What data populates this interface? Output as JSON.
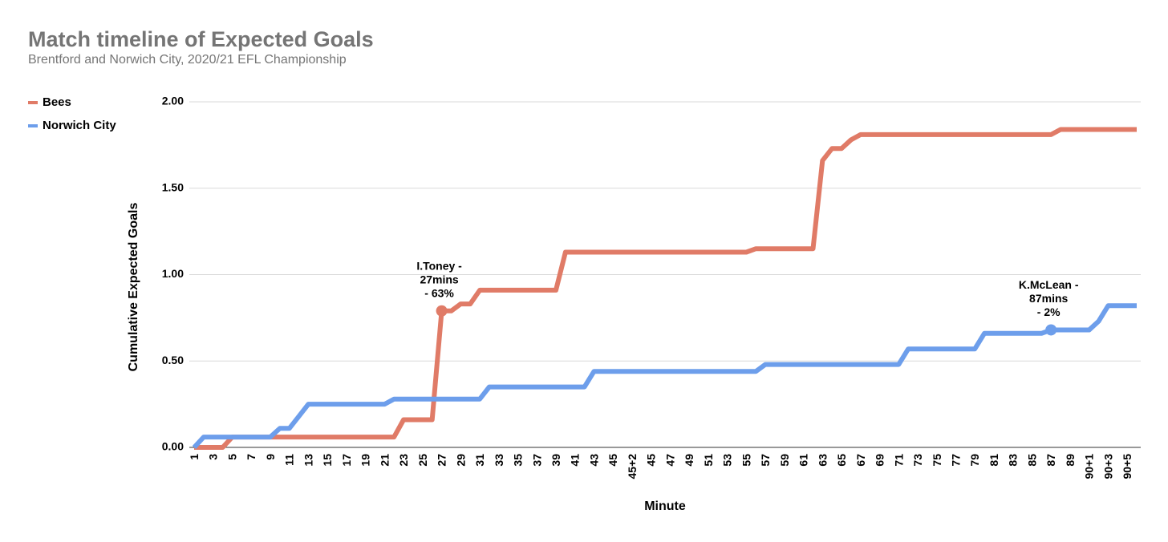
{
  "chart_data": {
    "type": "line",
    "title": "Match timeline of Expected Goals",
    "subtitle": "Brentford and Norwich City, 2020/21 EFL Championship",
    "x_label": "Minute",
    "y_label": "Cumulative Expected Goals",
    "categories": [
      "1",
      null,
      "3",
      null,
      "5",
      null,
      "7",
      null,
      "9",
      null,
      "11",
      null,
      "13",
      null,
      "15",
      null,
      "17",
      null,
      "19",
      null,
      "21",
      null,
      "23",
      null,
      "25",
      null,
      "27",
      null,
      "29",
      null,
      "31",
      null,
      "33",
      null,
      "35",
      null,
      "37",
      null,
      "39",
      null,
      "41",
      null,
      "43",
      null,
      "45",
      null,
      "45+2",
      null,
      "45",
      null,
      "47",
      null,
      "49",
      null,
      "51",
      null,
      "53",
      null,
      "55",
      null,
      "57",
      null,
      "59",
      null,
      "61",
      null,
      "63",
      null,
      "65",
      null,
      "67",
      null,
      "69",
      null,
      "71",
      null,
      "73",
      null,
      "75",
      null,
      "77",
      null,
      "79",
      null,
      "81",
      null,
      "83",
      null,
      "85",
      null,
      "87",
      null,
      "89",
      null,
      "90+1",
      null,
      "90+3",
      null,
      "90+5",
      null
    ],
    "series": [
      {
        "name": "Bees",
        "color": "#e07b67",
        "values": [
          0,
          0,
          0,
          0,
          0.06,
          0.06,
          0.06,
          0.06,
          0.06,
          0.06,
          0.06,
          0.06,
          0.06,
          0.06,
          0.06,
          0.06,
          0.06,
          0.06,
          0.06,
          0.06,
          0.06,
          0.06,
          0.16,
          0.16,
          0.16,
          0.16,
          0.79,
          0.79,
          0.83,
          0.83,
          0.91,
          0.91,
          0.91,
          0.91,
          0.91,
          0.91,
          0.91,
          0.91,
          0.91,
          1.13,
          1.13,
          1.13,
          1.13,
          1.13,
          1.13,
          1.13,
          1.13,
          1.13,
          1.13,
          1.13,
          1.13,
          1.13,
          1.13,
          1.13,
          1.13,
          1.13,
          1.13,
          1.13,
          1.13,
          1.15,
          1.15,
          1.15,
          1.15,
          1.15,
          1.15,
          1.15,
          1.66,
          1.73,
          1.73,
          1.78,
          1.81,
          1.81,
          1.81,
          1.81,
          1.81,
          1.81,
          1.81,
          1.81,
          1.81,
          1.81,
          1.81,
          1.81,
          1.81,
          1.81,
          1.81,
          1.81,
          1.81,
          1.81,
          1.81,
          1.81,
          1.81,
          1.84,
          1.84,
          1.84,
          1.84,
          1.84,
          1.84,
          1.84,
          1.84,
          1.84
        ]
      },
      {
        "name": "Norwich City",
        "color": "#6d9eeb",
        "values": [
          0,
          0.06,
          0.06,
          0.06,
          0.06,
          0.06,
          0.06,
          0.06,
          0.06,
          0.11,
          0.11,
          0.18,
          0.25,
          0.25,
          0.25,
          0.25,
          0.25,
          0.25,
          0.25,
          0.25,
          0.25,
          0.28,
          0.28,
          0.28,
          0.28,
          0.28,
          0.28,
          0.28,
          0.28,
          0.28,
          0.28,
          0.35,
          0.35,
          0.35,
          0.35,
          0.35,
          0.35,
          0.35,
          0.35,
          0.35,
          0.35,
          0.35,
          0.44,
          0.44,
          0.44,
          0.44,
          0.44,
          0.44,
          0.44,
          0.44,
          0.44,
          0.44,
          0.44,
          0.44,
          0.44,
          0.44,
          0.44,
          0.44,
          0.44,
          0.44,
          0.48,
          0.48,
          0.48,
          0.48,
          0.48,
          0.48,
          0.48,
          0.48,
          0.48,
          0.48,
          0.48,
          0.48,
          0.48,
          0.48,
          0.48,
          0.57,
          0.57,
          0.57,
          0.57,
          0.57,
          0.57,
          0.57,
          0.57,
          0.66,
          0.66,
          0.66,
          0.66,
          0.66,
          0.66,
          0.66,
          0.68,
          0.68,
          0.68,
          0.68,
          0.68,
          0.73,
          0.82,
          0.82,
          0.82,
          0.82
        ]
      }
    ],
    "ylim": [
      0,
      2
    ],
    "yticks": [
      {
        "value": 0,
        "label": "0.00"
      },
      {
        "value": 0.5,
        "label": "0.50"
      },
      {
        "value": 1,
        "label": "1.00"
      },
      {
        "value": 1.5,
        "label": "1.50"
      },
      {
        "value": 2,
        "label": "2.00"
      }
    ],
    "grid": true,
    "legend": "top-left",
    "annotations": [
      {
        "lines": [
          "I.Toney -",
          "27mins",
          "- 63%"
        ],
        "series": 0,
        "index": 26
      },
      {
        "lines": [
          "K.McLean -",
          "87mins",
          "- 2%"
        ],
        "series": 1,
        "index": 90
      }
    ]
  }
}
